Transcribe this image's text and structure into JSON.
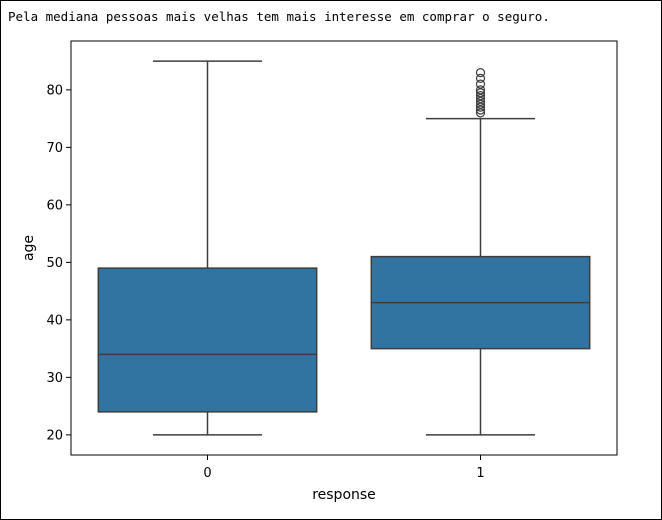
{
  "output_text": "Pela mediana pessoas mais velhas tem mais interesse em comprar o seguro.",
  "colors": {
    "box_fill": "#3274a1",
    "line": "#3d3d3d",
    "axis": "#000000"
  },
  "chart_data": {
    "type": "box",
    "title": "",
    "xlabel": "response",
    "ylabel": "age",
    "categories": [
      "0",
      "1"
    ],
    "ylim": [
      16.5,
      88.5
    ],
    "yticks": [
      20,
      30,
      40,
      50,
      60,
      70,
      80
    ],
    "grid": false,
    "boxes": [
      {
        "category": "0",
        "whisker_low": 20,
        "q1": 24,
        "median": 34,
        "q3": 49,
        "whisker_high": 85,
        "outliers": []
      },
      {
        "category": "1",
        "whisker_low": 20,
        "q1": 35,
        "median": 43,
        "q3": 51,
        "whisker_high": 75,
        "outliers": [
          76,
          76.5,
          77,
          77.5,
          78,
          78.5,
          79,
          79.5,
          80,
          81,
          82,
          83
        ]
      }
    ]
  }
}
